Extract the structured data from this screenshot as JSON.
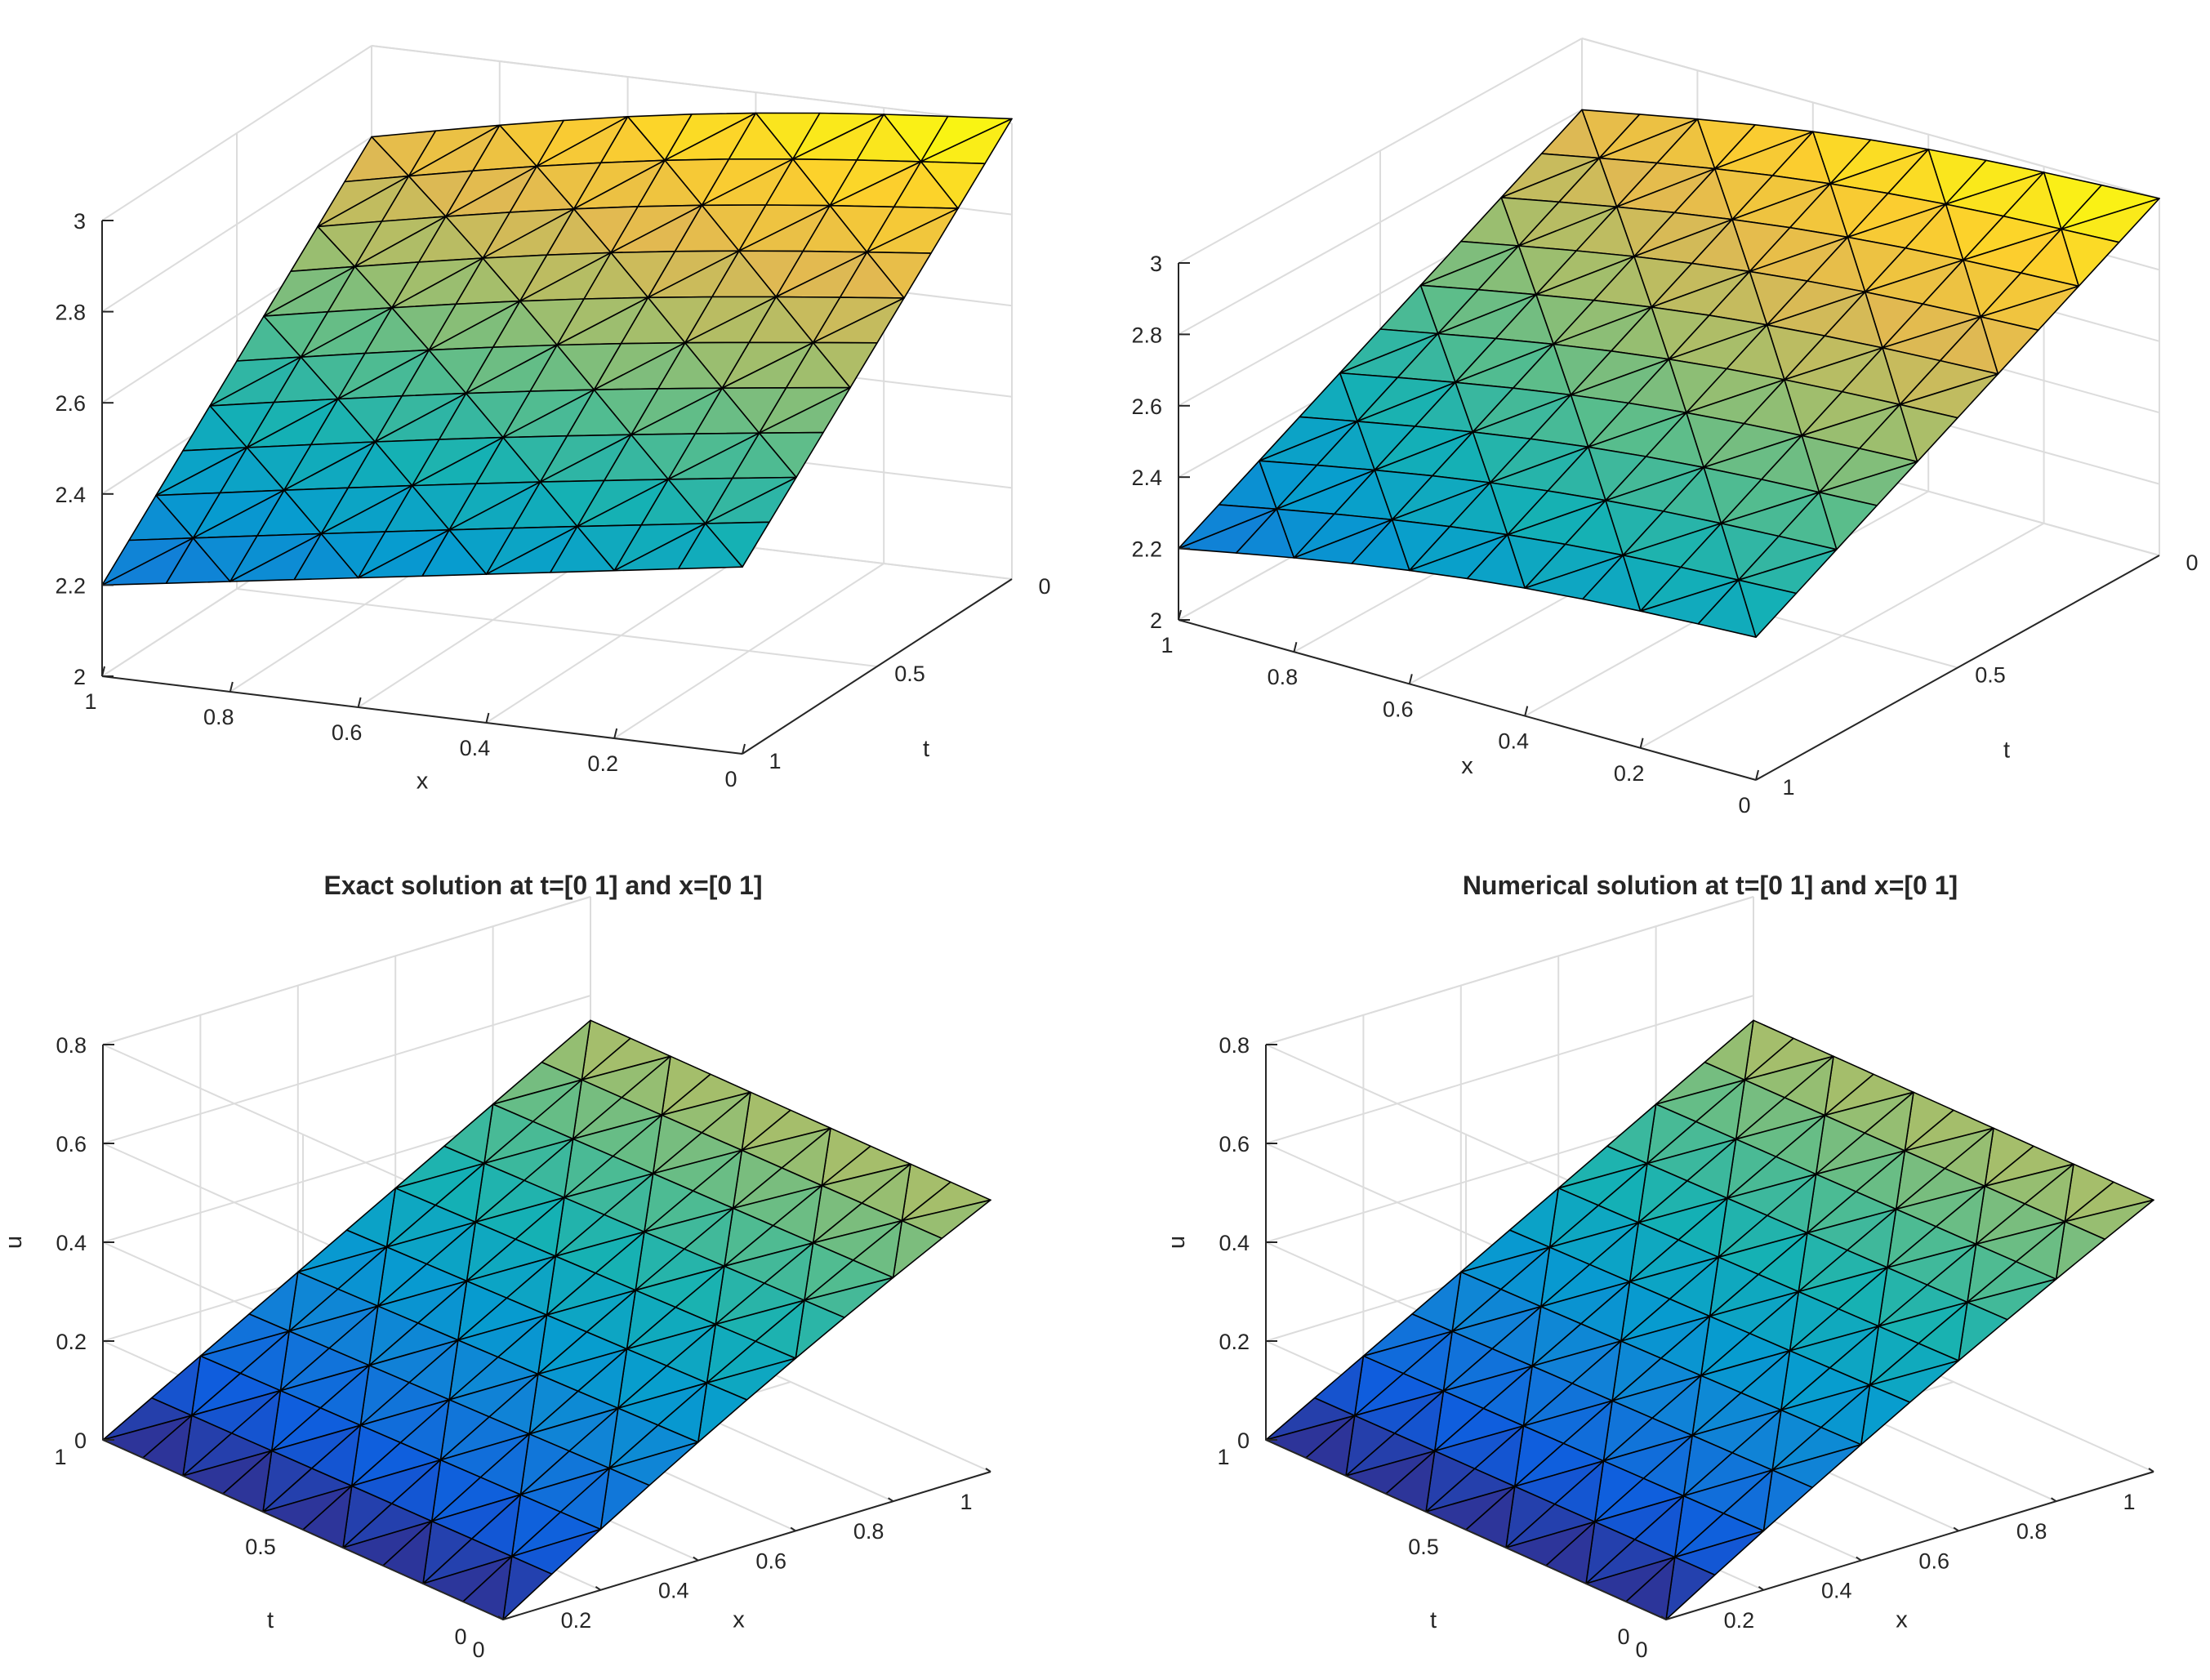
{
  "figure": {
    "background": "#ffffff",
    "colormap": "parula"
  },
  "chart_data": [
    {
      "id": "top-left",
      "type": "surface",
      "title": "",
      "xlabel": "x",
      "ylabel": "t",
      "zlabel": "",
      "xlim": [
        0,
        1
      ],
      "ylim": [
        0,
        1
      ],
      "zlim": [
        2,
        3
      ],
      "xticks": [
        "0",
        "0.2",
        "0.4",
        "0.6",
        "0.8",
        "1"
      ],
      "yticks": [
        "0",
        "0.5",
        "1"
      ],
      "zticks": [
        "2",
        "2.2",
        "2.4",
        "2.6",
        "2.8",
        "3"
      ],
      "mesh": "triangulated 10x10 grid on [0,1]x[0,1]",
      "sample_points": [
        {
          "x": 1,
          "t": 1,
          "z": 2.2
        },
        {
          "x": 0,
          "t": 1,
          "z": 2.41
        },
        {
          "x": 1,
          "t": 0,
          "z": 2.8
        },
        {
          "x": 0,
          "t": 0,
          "z": 3.0
        }
      ]
    },
    {
      "id": "top-right",
      "type": "surface",
      "title": "",
      "xlabel": "x",
      "ylabel": "t",
      "zlabel": "",
      "xlim": [
        0,
        1
      ],
      "ylim": [
        0,
        1
      ],
      "zlim": [
        2,
        3
      ],
      "xticks": [
        "0",
        "0.2",
        "0.4",
        "0.6",
        "0.8",
        "1"
      ],
      "yticks": [
        "0",
        "0.5",
        "1"
      ],
      "zticks": [
        "2",
        "2.2",
        "2.4",
        "2.6",
        "2.8",
        "3"
      ],
      "mesh": "triangulated 10x10 grid on [0,1]x[0,1]",
      "sample_points": [
        {
          "x": 1,
          "t": 1,
          "z": 2.2
        },
        {
          "x": 0,
          "t": 1,
          "z": 2.4
        },
        {
          "x": 1,
          "t": 0,
          "z": 2.8
        },
        {
          "x": 0,
          "t": 0,
          "z": 3.0
        }
      ]
    },
    {
      "id": "bottom-left",
      "type": "surface",
      "title": "Exact solution at t=[0 1] and x=[0 1]",
      "xlabel": "x",
      "ylabel": "t",
      "zlabel": "u",
      "xlim": [
        0,
        1
      ],
      "ylim": [
        0,
        1
      ],
      "zlim": [
        0,
        0.8
      ],
      "xticks": [
        "0",
        "0.2",
        "0.4",
        "0.6",
        "0.8",
        "1"
      ],
      "yticks": [
        "0",
        "0.5",
        "1"
      ],
      "zticks": [
        "0",
        "0.2",
        "0.4",
        "0.6",
        "0.8"
      ],
      "mesh": "triangulated 10x10 grid on [0,1]x[0,1]",
      "sample_points": [
        {
          "x": 0,
          "t": 1,
          "z": 0.0
        },
        {
          "x": 0,
          "t": 0,
          "z": 0.0
        },
        {
          "x": 1,
          "t": 1,
          "z": 0.55
        },
        {
          "x": 1,
          "t": 0,
          "z": 0.55
        }
      ]
    },
    {
      "id": "bottom-right",
      "type": "surface",
      "title": "Numerical solution at t=[0 1] and x=[0 1]",
      "xlabel": "x",
      "ylabel": "t",
      "zlabel": "u",
      "xlim": [
        0,
        1
      ],
      "ylim": [
        0,
        1
      ],
      "zlim": [
        0,
        0.8
      ],
      "xticks": [
        "0",
        "0.2",
        "0.4",
        "0.6",
        "0.8",
        "1"
      ],
      "yticks": [
        "0",
        "0.5",
        "1"
      ],
      "zticks": [
        "0",
        "0.2",
        "0.4",
        "0.6",
        "0.8"
      ],
      "mesh": "triangulated 10x10 grid on [0,1]x[0,1]",
      "sample_points": [
        {
          "x": 0,
          "t": 1,
          "z": 0.0
        },
        {
          "x": 0,
          "t": 0,
          "z": 0.0
        },
        {
          "x": 1,
          "t": 1,
          "z": 0.55
        },
        {
          "x": 1,
          "t": 0,
          "z": 0.55
        }
      ]
    }
  ]
}
